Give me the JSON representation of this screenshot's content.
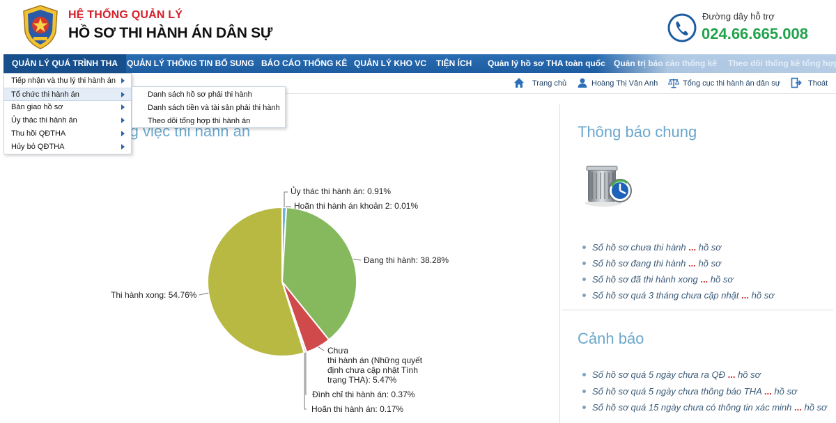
{
  "header": {
    "title_line1": "HỆ THỐNG QUẢN LÝ",
    "title_line2": "HỒ SƠ THI HÀNH ÁN DÂN SỰ",
    "hotline_label": "Đường dây hỗ trợ",
    "hotline_number": "024.66.665.008",
    "logo_icon": "court-emblem-icon",
    "phone_icon": "phone-icon"
  },
  "nav": {
    "items": [
      "QUẢN LÝ QUÁ TRÌNH THA",
      "QUẢN LÝ THÔNG TIN BỔ SUNG",
      "BÁO CÁO THỐNG KÊ",
      "QUẢN LÝ KHO VC",
      "TIỆN ÍCH",
      "Quản lý hồ sơ THA toàn quốc",
      "Quản trị báo cáo thống kê",
      "Theo dõi thống kê tổng hợp"
    ]
  },
  "dropdown": {
    "items": [
      "Tiếp nhận và thụ lý thi hành án",
      "Tổ chức thi hành án",
      "Bàn giao hồ sơ",
      "Ủy thác thi hành án",
      "Thu hồi QĐTHA",
      "Hủy bỏ QĐTHA"
    ],
    "submenu": [
      "Danh sách hồ sơ phải thi hành",
      "Danh sách tiền và tài sản phải thi hành",
      "Theo dõi tổng hợp thi hành án"
    ]
  },
  "toolbar": {
    "home": "Trang chủ",
    "user": "Hoàng Thị Vân Anh",
    "agency": "Tổng cục thi hành án dân sự",
    "logout": "Thoát"
  },
  "left": {
    "title_partial": "ơng việc thi hành án"
  },
  "chart_data": {
    "type": "pie",
    "slices": [
      {
        "label": "Ủy thác thi hành án: 0.91%",
        "value": 0.91,
        "color": "#6db6d9"
      },
      {
        "label": "Hoãn thi hành án khoản 2: 0.01%",
        "value": 0.01,
        "color": "#5a9a3a"
      },
      {
        "label": "Đang thi hành: 38.28%",
        "value": 38.28,
        "color": "#86b95e"
      },
      {
        "label": "Chưa thi hành án (Những quyết định chưa cập nhật Tình trạng THA): 5.47%",
        "value": 5.47,
        "color": "#d0494b"
      },
      {
        "label": "Đình chỉ thi hành án: 0.37%",
        "value": 0.37,
        "color": "#7a7ab8"
      },
      {
        "label": "Hoãn thi hành án: 0.17%",
        "value": 0.17,
        "color": "#c58fc0"
      },
      {
        "label": "Thi hành xong: 54.76%",
        "value": 54.76,
        "color": "#b8b942"
      }
    ],
    "display_labels": {
      "uythac": "Ủy thác thi hành án: 0.91%",
      "hoan2": "Hoãn thi hành án khoản 2: 0.01%",
      "dang": "Đang thi hành: 38.28%",
      "chua1": "Chưa",
      "chua2": "thi hành án (Những quyết",
      "chua3": "định chưa cập nhật Tình",
      "chua4": "trạng THA): 5.47%",
      "dinhchi": "Đình chỉ thi hành án: 0.37%",
      "hoan": "Hoãn thi hành án: 0.17%",
      "xong": "Thi hành xong: 54.76%"
    }
  },
  "notices": {
    "title": "Thông báo chung",
    "icon": "recycle-bin-clock-icon",
    "items": [
      {
        "text": "Số hồ sơ chưa thi hành",
        "ellipsis": "...",
        "suffix": "hồ sơ"
      },
      {
        "text": "Số hồ sơ đang thi hành",
        "ellipsis": "...",
        "suffix": "hồ sơ"
      },
      {
        "text": "Số hồ sơ đã thi hành xong",
        "ellipsis": "...",
        "suffix": "hồ sơ"
      },
      {
        "text": "Số hồ sơ quá 3 tháng chưa cập nhật",
        "ellipsis": "...",
        "suffix": "hồ sơ"
      }
    ]
  },
  "warnings": {
    "title": "Cảnh báo",
    "items": [
      {
        "text": "Số hồ sơ quá 5 ngày chưa ra QĐ",
        "ellipsis": "...",
        "suffix": "hồ sơ"
      },
      {
        "text": "Số hồ sơ quá 5 ngày chưa thông báo THA",
        "ellipsis": "...",
        "suffix": "hồ sơ"
      },
      {
        "text": "Số hồ sơ quá 15 ngày chưa có thông tin xác minh",
        "ellipsis": "...",
        "suffix": "hồ sơ"
      }
    ]
  }
}
